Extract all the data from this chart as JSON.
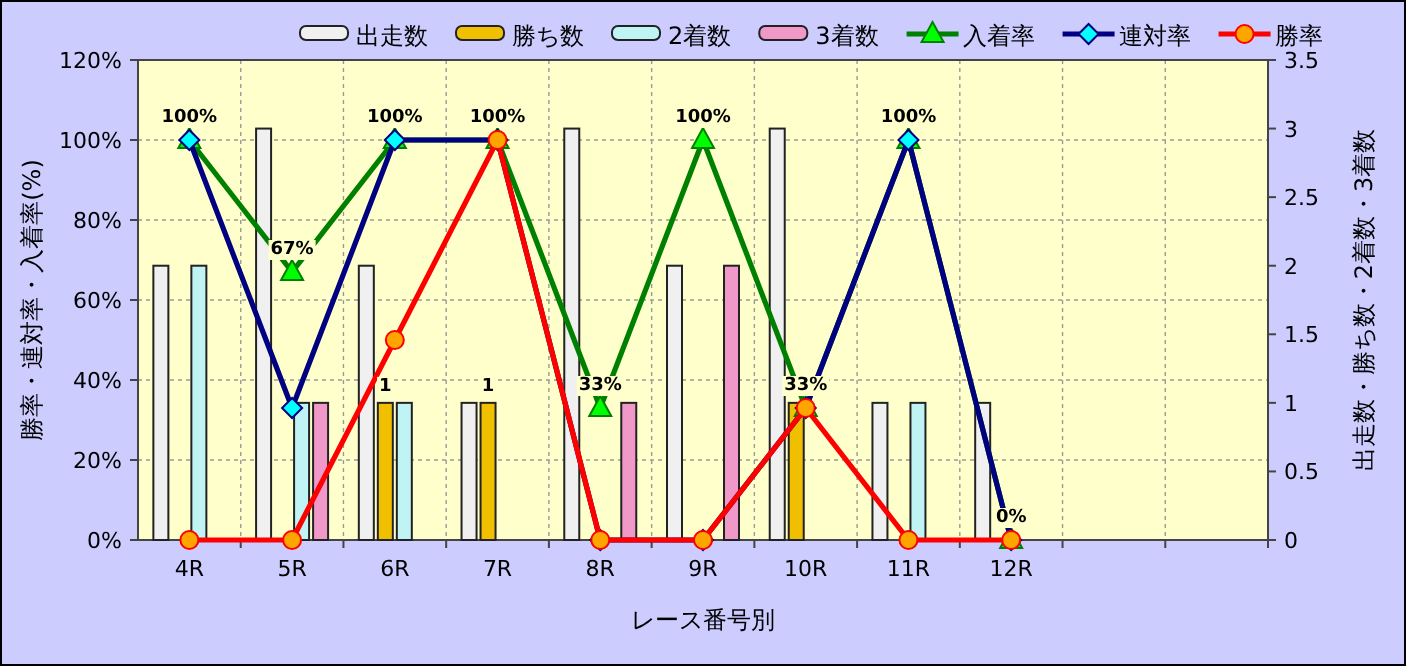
{
  "chart_data": {
    "type": "bar",
    "categories": [
      "4R",
      "5R",
      "6R",
      "7R",
      "8R",
      "9R",
      "10R",
      "11R",
      "12R",
      null,
      null
    ],
    "xlabel": "レース番号別",
    "ylabel": "勝率・連対率・入着率(%)",
    "y2label": "出走数・勝ち数・2着数・3着数",
    "ylim": [
      0,
      120
    ],
    "yticks": [
      {
        "value": 0,
        "label": "0%"
      },
      {
        "value": 20,
        "label": "20%"
      },
      {
        "value": 40,
        "label": "40%"
      },
      {
        "value": 60,
        "label": "60%"
      },
      {
        "value": 80,
        "label": "80%"
      },
      {
        "value": 100,
        "label": "100%"
      },
      {
        "value": 120,
        "label": "120%"
      }
    ],
    "y2lim": [
      0,
      3.5
    ],
    "y2ticks": [
      0,
      0.5,
      1,
      1.5,
      2,
      2.5,
      3,
      3.5
    ],
    "grid": true,
    "legend": "top",
    "series": [
      {
        "name": "出走数",
        "axis": "y2",
        "color": "#f0f0f0",
        "values": [
          2,
          3,
          2,
          1,
          3,
          2,
          3,
          1,
          1,
          null,
          null
        ]
      },
      {
        "name": "勝ち数",
        "axis": "y2",
        "color": "#f0c000",
        "values": [
          0,
          0,
          1,
          1,
          0,
          0,
          1,
          0,
          0,
          null,
          null
        ],
        "value_labels": [
          null,
          null,
          "1",
          "1",
          null,
          null,
          null,
          null,
          null,
          null,
          null
        ]
      },
      {
        "name": "2着数",
        "axis": "y2",
        "color": "#c0f4f4",
        "values": [
          2,
          1,
          1,
          0,
          0,
          0,
          0,
          1,
          0,
          null,
          null
        ]
      },
      {
        "name": "3着数",
        "axis": "y2",
        "color": "#f098c8",
        "values": [
          0,
          1,
          0,
          0,
          1,
          2,
          0,
          0,
          0,
          null,
          null
        ]
      },
      {
        "name": "入着率",
        "type": "line",
        "color": "#008000",
        "marker": "triangle",
        "values": [
          100,
          67,
          100,
          100,
          33,
          100,
          33,
          100,
          0,
          null,
          null
        ],
        "value_labels": [
          "100%",
          "67%",
          "100%",
          "100%",
          "33%",
          "100%",
          "33%",
          "100%",
          "0%",
          null,
          null
        ]
      },
      {
        "name": "連対率",
        "type": "line",
        "color": "#000080",
        "marker": "diamond",
        "values": [
          100,
          33,
          100,
          100,
          0,
          0,
          33,
          100,
          0,
          null,
          null
        ]
      },
      {
        "name": "勝率",
        "type": "line",
        "color": "#ff0000",
        "marker": "circle",
        "values": [
          0,
          0,
          50,
          100,
          0,
          0,
          33,
          0,
          0,
          null,
          null
        ]
      }
    ]
  }
}
